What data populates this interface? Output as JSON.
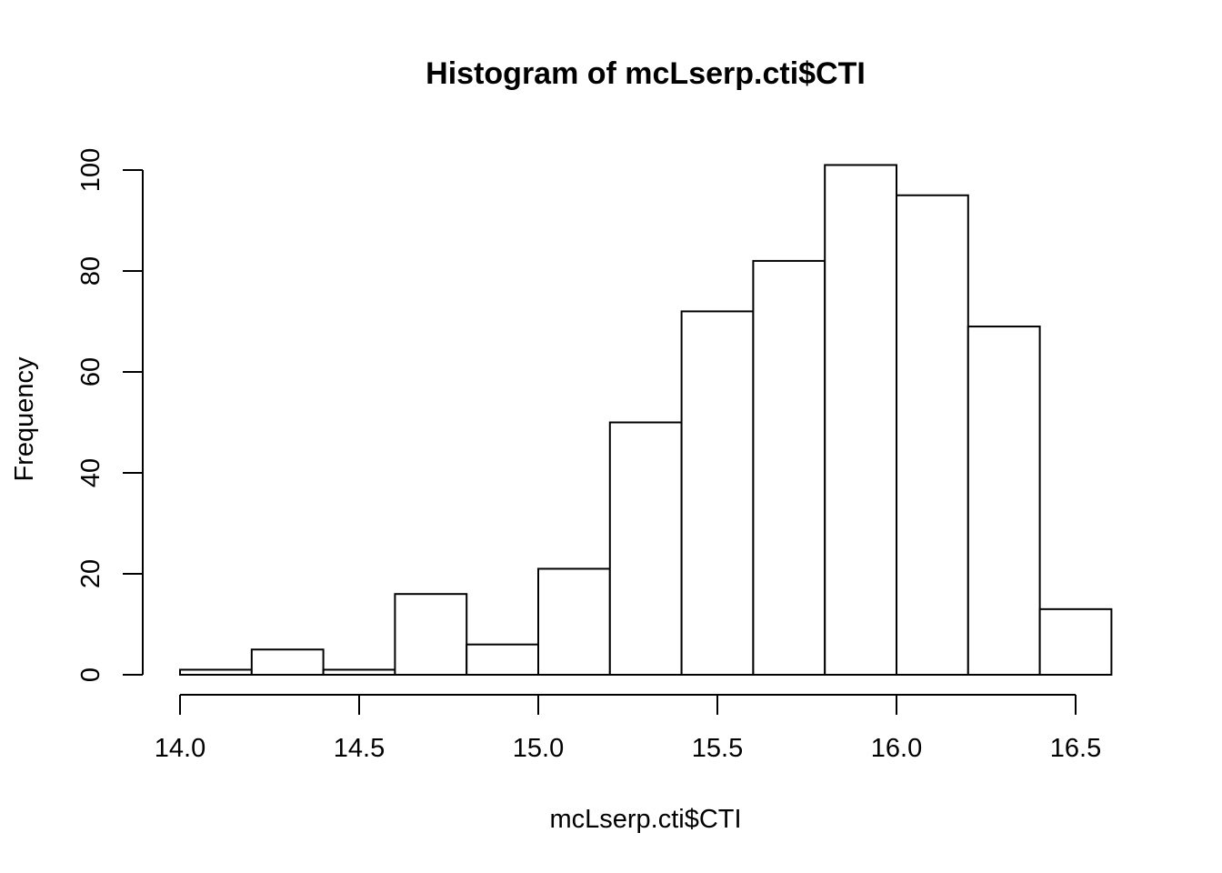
{
  "chart_data": {
    "type": "histogram",
    "title": "Histogram of mcLserp.cti$CTI",
    "xlabel": "mcLserp.cti$CTI",
    "ylabel": "Frequency",
    "bin_edges": [
      14.0,
      14.2,
      14.4,
      14.6,
      14.8,
      15.0,
      15.2,
      15.4,
      15.6,
      15.8,
      16.0,
      16.2,
      16.4,
      16.6
    ],
    "values": [
      1,
      5,
      1,
      16,
      6,
      21,
      50,
      72,
      82,
      101,
      95,
      69,
      13
    ],
    "x_ticks": [
      14.0,
      14.5,
      15.0,
      15.5,
      16.0,
      16.5
    ],
    "x_tick_labels": [
      "14.0",
      "14.5",
      "15.0",
      "15.5",
      "16.0",
      "16.5"
    ],
    "y_ticks": [
      0,
      20,
      40,
      60,
      80,
      100
    ],
    "y_tick_labels": [
      "0",
      "20",
      "40",
      "60",
      "80",
      "100"
    ],
    "xlim": [
      14.0,
      16.6
    ],
    "ylim": [
      0,
      101
    ],
    "grid": false,
    "bar_fill": "#ffffff",
    "bar_stroke": "#000000"
  }
}
